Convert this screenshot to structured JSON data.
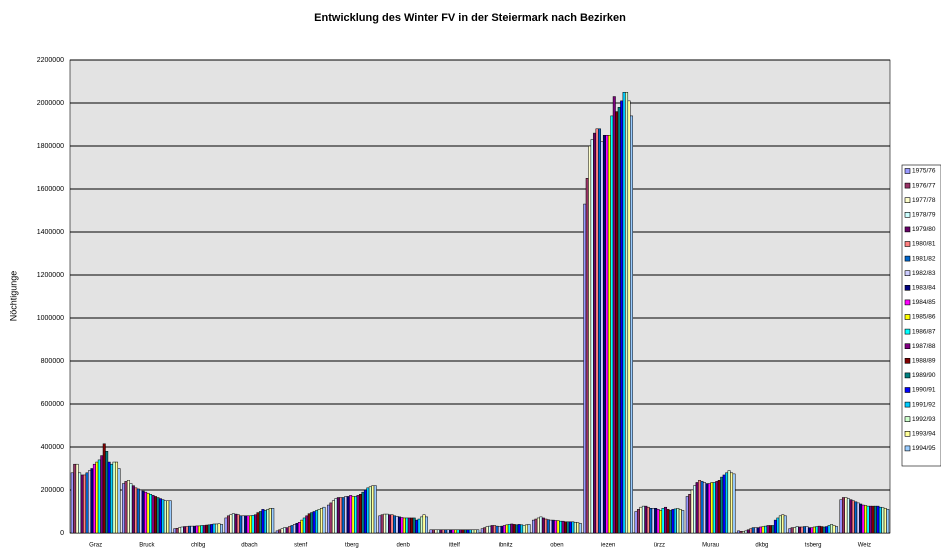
{
  "chart_data": {
    "type": "bar",
    "title": "Entwicklung des Winter FV in der Steiermark nach Bezirken",
    "y_label": "Nöchtigunge",
    "categories": [
      "Graz",
      "Bruck",
      "chlbg",
      "dbach",
      "stenf",
      "tberg",
      "denb",
      "ittelf",
      "ibnitz",
      "oben",
      "iezen",
      "ürzz",
      "Murau",
      "dkbg",
      "tsberg",
      "Weiz"
    ],
    "ylim": [
      0,
      2200000
    ],
    "yticks": [
      0,
      200000,
      400000,
      600000,
      800000,
      1000000,
      1200000,
      1400000,
      1600000,
      1800000,
      2000000,
      2200000
    ],
    "grid": true,
    "legend": "right",
    "series_names": [
      "1975/76",
      "1976/77",
      "1977/78",
      "1978/79",
      "1979/80",
      "1980/81",
      "1981/82",
      "1982/83",
      "1983/84",
      "1984/85",
      "1985/86",
      "1986/87",
      "1987/88",
      "1988/89",
      "1989/90",
      "1990/91",
      "1991/92",
      "1992/93",
      "1993/94",
      "1994/95"
    ],
    "colors": [
      "#9999ff",
      "#993366",
      "#ffffcc",
      "#ccffff",
      "#660066",
      "#ff8080",
      "#0066cc",
      "#ccccff",
      "#000080",
      "#ff00ff",
      "#ffff00",
      "#00ffff",
      "#800080",
      "#800000",
      "#008080",
      "#0000ff",
      "#00ccff",
      "#ccffcc",
      "#ffff99",
      "#99ccff"
    ],
    "values_by_category": [
      [
        280000,
        320000,
        320000,
        280000,
        270000,
        270000,
        280000,
        290000,
        300000,
        320000,
        330000,
        340000,
        360000,
        415000,
        380000,
        330000,
        320000,
        330000,
        330000,
        300000
      ],
      [
        230000,
        240000,
        245000,
        230000,
        220000,
        210000,
        205000,
        200000,
        195000,
        190000,
        185000,
        180000,
        175000,
        170000,
        165000,
        160000,
        155000,
        150000,
        150000,
        150000
      ],
      [
        20000,
        22000,
        25000,
        28000,
        30000,
        30000,
        32000,
        32000,
        32000,
        33000,
        33000,
        35000,
        35000,
        37000,
        38000,
        40000,
        42000,
        42000,
        43000,
        40000
      ],
      [
        70000,
        80000,
        85000,
        90000,
        88000,
        85000,
        80000,
        80000,
        80000,
        80000,
        80000,
        82000,
        85000,
        95000,
        100000,
        110000,
        105000,
        110000,
        115000,
        115000
      ],
      [
        10000,
        15000,
        20000,
        25000,
        25000,
        30000,
        35000,
        40000,
        45000,
        50000,
        60000,
        70000,
        80000,
        90000,
        95000,
        100000,
        105000,
        110000,
        115000,
        120000
      ],
      [
        130000,
        140000,
        150000,
        160000,
        165000,
        165000,
        165000,
        170000,
        170000,
        175000,
        170000,
        170000,
        175000,
        180000,
        190000,
        200000,
        210000,
        215000,
        220000,
        220000
      ],
      [
        80000,
        85000,
        88000,
        88000,
        85000,
        85000,
        80000,
        78000,
        75000,
        72000,
        70000,
        70000,
        70000,
        70000,
        70000,
        60000,
        65000,
        75000,
        85000,
        75000
      ],
      [
        15000,
        15000,
        15000,
        15000,
        15000,
        15000,
        15000,
        15000,
        15000,
        15000,
        15000,
        15000,
        15000,
        15000,
        15000,
        15000,
        15000,
        15000,
        15000,
        15000
      ],
      [
        20000,
        25000,
        30000,
        32000,
        35000,
        35000,
        32000,
        30000,
        32000,
        35000,
        38000,
        40000,
        42000,
        40000,
        38000,
        40000,
        38000,
        35000,
        38000,
        40000
      ],
      [
        60000,
        65000,
        70000,
        75000,
        70000,
        65000,
        62000,
        60000,
        60000,
        58000,
        58000,
        55000,
        55000,
        52000,
        52000,
        52000,
        52000,
        50000,
        48000,
        45000
      ],
      [
        1530000,
        1650000,
        1800000,
        1830000,
        1860000,
        1880000,
        1880000,
        1820000,
        1850000,
        1850000,
        1850000,
        1940000,
        2030000,
        1960000,
        1980000,
        2010000,
        2050000,
        2050000,
        2010000,
        1940000
      ],
      [
        100000,
        110000,
        120000,
        125000,
        125000,
        120000,
        115000,
        115000,
        115000,
        110000,
        105000,
        115000,
        120000,
        110000,
        105000,
        110000,
        112000,
        115000,
        110000,
        105000
      ],
      [
        170000,
        180000,
        200000,
        220000,
        235000,
        245000,
        240000,
        235000,
        230000,
        230000,
        235000,
        235000,
        240000,
        245000,
        260000,
        270000,
        280000,
        290000,
        280000,
        275000
      ],
      [
        10000,
        8000,
        8000,
        10000,
        15000,
        20000,
        25000,
        25000,
        25000,
        28000,
        30000,
        32000,
        35000,
        35000,
        35000,
        60000,
        70000,
        80000,
        85000,
        80000
      ],
      [
        20000,
        25000,
        25000,
        30000,
        28000,
        28000,
        30000,
        30000,
        25000,
        25000,
        28000,
        30000,
        32000,
        30000,
        28000,
        30000,
        35000,
        40000,
        35000,
        30000
      ],
      [
        155000,
        165000,
        165000,
        160000,
        155000,
        150000,
        145000,
        140000,
        135000,
        130000,
        128000,
        125000,
        125000,
        125000,
        125000,
        125000,
        120000,
        118000,
        115000,
        110000
      ]
    ]
  }
}
